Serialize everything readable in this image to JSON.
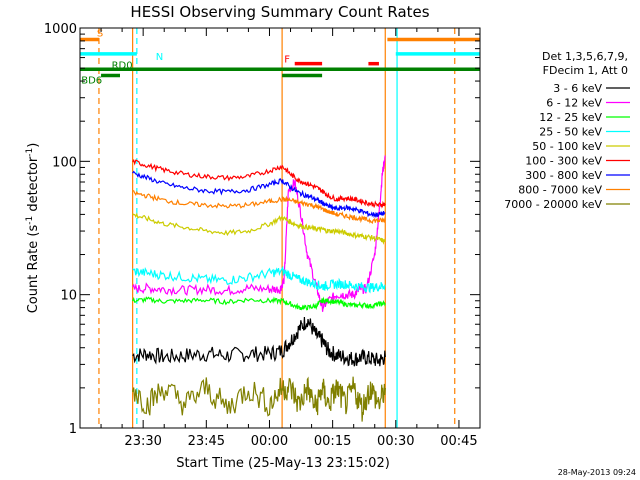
{
  "chart_data": {
    "type": "line",
    "title": "HESSI Observing Summary Count Rates",
    "xlabel": "Start Time (25-May-13 23:15:02)",
    "ylabel": "Count Rate (s",
    "ylabel_sup1": "-1",
    "ylabel_mid": " detector",
    "ylabel_sup2": "-1",
    "ylabel_end": ")",
    "y_scale": "log",
    "ylim": [
      1,
      1000
    ],
    "xlim_minutes": [
      0,
      95
    ],
    "x_ticks": [
      {
        "label": "23:30",
        "min": 15
      },
      {
        "label": "23:45",
        "min": 30
      },
      {
        "label": "00:00",
        "min": 45
      },
      {
        "label": "00:15",
        "min": 60
      },
      {
        "label": "00:30",
        "min": 75
      },
      {
        "label": "00:45",
        "min": 90
      }
    ],
    "y_ticks": [
      {
        "label": "1",
        "value": 1
      },
      {
        "label": "10",
        "value": 10
      },
      {
        "label": "100",
        "value": 100
      },
      {
        "label": "1000",
        "value": 1000
      }
    ],
    "legend_header": [
      "Det 1,3,5,6,7,9,",
      "FDecim 1, Att 0"
    ],
    "series": [
      {
        "name": "3 - 6 keV",
        "color": "#000000",
        "x": [
          12.5,
          16,
          20,
          25,
          30,
          35,
          40,
          45,
          48,
          50,
          52,
          54,
          56,
          57.5,
          59,
          61,
          63,
          65,
          67,
          69,
          71,
          72.5
        ],
        "y": [
          3.5,
          3.6,
          3.4,
          3.5,
          3.6,
          3.5,
          3.6,
          3.6,
          3.8,
          4.5,
          5.5,
          6.5,
          5,
          4.5,
          3.8,
          3.5,
          3.4,
          3.3,
          3.4,
          3.3,
          3.2,
          3.4
        ]
      },
      {
        "name": "6 - 12 keV",
        "color": "#ff00ff",
        "x": [
          12.5,
          16,
          20,
          25,
          30,
          35,
          40,
          45,
          47.5,
          48.5,
          49.5,
          51,
          52.5,
          54,
          56,
          57.5,
          59,
          61,
          63,
          65,
          66.5,
          68,
          70,
          71,
          71.8,
          72.5
        ],
        "y": [
          11,
          11.2,
          11,
          10.8,
          11,
          10.7,
          11.2,
          11,
          11,
          13,
          60,
          70,
          40,
          20,
          12,
          8,
          9,
          10,
          10,
          10,
          11,
          11,
          20,
          40,
          80,
          110
        ]
      },
      {
        "name": "12 - 25 keV",
        "color": "#00ff00",
        "x": [
          12.5,
          16,
          20,
          25,
          30,
          35,
          40,
          45,
          48,
          50,
          52,
          54,
          56,
          57.5,
          59,
          61,
          63,
          65,
          67,
          69,
          71,
          72.5
        ],
        "y": [
          9,
          9.2,
          8.9,
          9,
          9.1,
          8.8,
          9.2,
          9,
          9,
          8.5,
          8,
          8,
          8.2,
          9,
          9,
          8.8,
          8.5,
          8.3,
          8.4,
          8.2,
          8.5,
          8.6
        ]
      },
      {
        "name": "25 - 50 keV",
        "color": "#00ffff",
        "x": [
          12.5,
          16,
          20,
          25,
          30,
          35,
          40,
          45,
          48,
          50,
          52,
          54,
          56,
          57.5,
          59,
          61,
          63,
          65,
          67,
          69,
          71,
          72.5
        ],
        "y": [
          15,
          14.5,
          14,
          13.5,
          13,
          12.8,
          13.5,
          14.5,
          15,
          14,
          13,
          12.5,
          12,
          11.5,
          11.8,
          12,
          12,
          11.6,
          11.5,
          11.3,
          11.5,
          11.8
        ]
      },
      {
        "name": "50 - 100 keV",
        "color": "#cccc00",
        "x": [
          12.5,
          16,
          20,
          25,
          30,
          35,
          40,
          45,
          48,
          50,
          52,
          54,
          56,
          57.5,
          59,
          61,
          63,
          65,
          67,
          69,
          71,
          72.5
        ],
        "y": [
          40,
          37,
          34,
          32,
          30,
          29,
          30,
          34,
          38,
          35,
          33,
          32,
          31,
          31,
          30,
          30,
          29,
          28,
          27.5,
          27,
          26,
          25
        ]
      },
      {
        "name": "100 - 300 keV",
        "color": "#ff0000",
        "x": [
          12.5,
          16,
          20,
          25,
          30,
          35,
          40,
          45,
          48,
          50,
          52,
          54,
          56,
          57.5,
          59,
          61,
          63,
          65,
          67,
          69,
          71,
          72.5
        ],
        "y": [
          100,
          93,
          86,
          80,
          77,
          75,
          77,
          85,
          92,
          80,
          72,
          68,
          64,
          60,
          55,
          52,
          53,
          52,
          50,
          48,
          47,
          48
        ]
      },
      {
        "name": "300 - 800 keV",
        "color": "#0000ff",
        "x": [
          12.5,
          16,
          20,
          25,
          30,
          35,
          40,
          45,
          48,
          50,
          52,
          54,
          56,
          57.5,
          59,
          61,
          63,
          65,
          67,
          69,
          71,
          72.5
        ],
        "y": [
          82,
          75,
          68,
          63,
          60,
          59,
          61,
          67,
          72,
          64,
          58,
          55,
          52,
          49,
          46,
          44,
          45,
          44,
          42,
          40,
          40,
          41
        ]
      },
      {
        "name": "800 - 7000 keV",
        "color": "#ff8000",
        "x": [
          12.5,
          16,
          20,
          25,
          30,
          35,
          40,
          45,
          48,
          50,
          52,
          54,
          56,
          57.5,
          59,
          61,
          63,
          65,
          67,
          69,
          71,
          72.5
        ],
        "y": [
          58,
          55,
          51,
          48,
          47,
          46,
          47,
          50,
          52,
          51,
          49,
          48,
          46,
          44,
          42,
          40,
          39,
          38,
          37,
          36,
          36,
          36
        ]
      },
      {
        "name": "7000 - 20000 keV",
        "color": "#808000",
        "x": [
          12.5,
          16,
          20,
          25,
          30,
          35,
          40,
          45,
          48,
          50,
          52,
          54,
          56,
          57.5,
          59,
          61,
          63,
          65,
          67,
          69,
          71,
          72.5
        ],
        "y": [
          2,
          1.5,
          2,
          1.5,
          2,
          1.4,
          2,
          1.5,
          2,
          2,
          1.5,
          2,
          1.4,
          2,
          1.5,
          2,
          1.5,
          2,
          1.4,
          2,
          1.5,
          2
        ]
      }
    ],
    "state_flags": [
      {
        "label": "S",
        "color": "#ff8000",
        "segments": [
          [
            0,
            4.5
          ],
          [
            73,
            95
          ]
        ]
      },
      {
        "label": "N",
        "color": "#00ffff",
        "segments": [
          [
            0,
            13.5
          ],
          [
            75,
            95
          ]
        ]
      },
      {
        "label": "F",
        "color": "#ff0000",
        "segments": [
          [
            51,
            57.5
          ],
          [
            68.5,
            71
          ]
        ]
      },
      {
        "label": "RD0",
        "color": "#008000",
        "segments": [
          [
            0,
            95
          ]
        ]
      },
      {
        "label": "BD6",
        "color": "#008000",
        "segments": [
          [
            5,
            9.5
          ],
          [
            48,
            57.5
          ]
        ]
      }
    ],
    "vertical_markers": [
      {
        "min": 4.5,
        "color": "#ff8000",
        "style": "dashed"
      },
      {
        "min": 12.5,
        "color": "#ff8000",
        "style": "solid"
      },
      {
        "min": 13.5,
        "color": "#00ffff",
        "style": "dashed"
      },
      {
        "min": 48,
        "color": "#ff8000",
        "style": "solid"
      },
      {
        "min": 72.5,
        "color": "#ff8000",
        "style": "solid"
      },
      {
        "min": 75.3,
        "color": "#00ffff",
        "style": "solid"
      },
      {
        "min": 89,
        "color": "#ff8000",
        "style": "dashed"
      }
    ],
    "grid": false
  },
  "timestamp": "28-May-2013 09:24"
}
